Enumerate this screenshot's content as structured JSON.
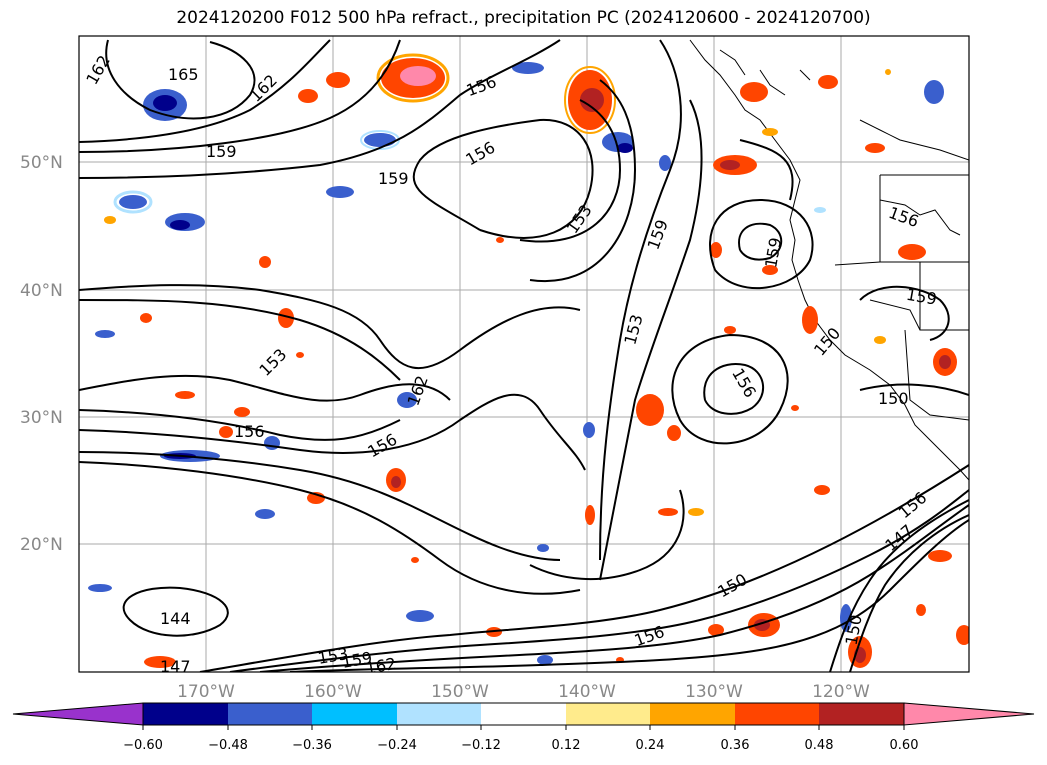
{
  "title": "2024120200 F012 500 hPa refract., precipitation PC (2024120600 - 2024120700)",
  "latitude_labels": [
    "50°N",
    "40°N",
    "30°N",
    "20°N"
  ],
  "longitude_labels": [
    "170°W",
    "160°W",
    "150°W",
    "140°W",
    "130°W",
    "120°W"
  ],
  "contour_labels": [
    "162",
    "165",
    "162",
    "156",
    "159",
    "159",
    "156",
    "153",
    "159",
    "159",
    "156",
    "159",
    "153",
    "162",
    "156",
    "156",
    "153",
    "156",
    "150",
    "147",
    "156",
    "150",
    "144",
    "156",
    "147",
    "153",
    "159",
    "162",
    "150",
    "150"
  ],
  "colorbar": {
    "ticks": [
      "−0.60",
      "−0.48",
      "−0.36",
      "−0.24",
      "−0.12",
      "0.12",
      "0.24",
      "0.36",
      "0.48",
      "0.60"
    ],
    "colors": [
      "#9932cc",
      "#00008b",
      "#3a5fcd",
      "#00bfff",
      "#b0e2ff",
      "#ffffff",
      "#ffeb8c",
      "#ffa500",
      "#ff4500",
      "#b22222",
      "#ff88aa"
    ]
  }
}
